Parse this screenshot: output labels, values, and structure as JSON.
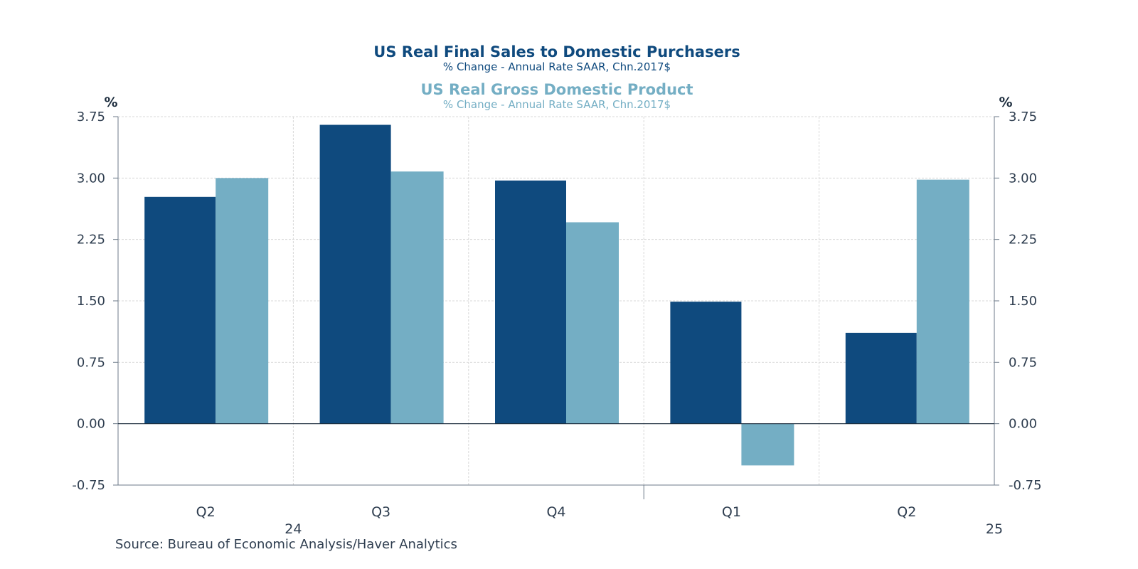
{
  "chart_data": {
    "type": "bar",
    "titles": [
      {
        "title": "US Real Final Sales to Domestic Purchasers",
        "subtitle": "% Change - Annual Rate    SAAR, Chn.2017$"
      },
      {
        "title": "US Real Gross Domestic Product",
        "subtitle": "% Change - Annual Rate    SAAR, Chn.2017$"
      }
    ],
    "categories": [
      "Q2",
      "Q3",
      "Q4",
      "Q1",
      "Q2"
    ],
    "year_labels": [
      {
        "label": "24",
        "after_index": 0
      },
      {
        "label": "25",
        "after_index": 4
      }
    ],
    "series": [
      {
        "name": "US Real Final Sales to Domestic Purchasers",
        "color": "#0f4a7e",
        "values": [
          2.77,
          3.65,
          2.97,
          1.49,
          1.11
        ]
      },
      {
        "name": "US Real Gross Domestic Product",
        "color": "#74aec4",
        "values": [
          3.0,
          3.08,
          2.46,
          -0.51,
          2.98
        ]
      }
    ],
    "ylim": [
      -0.75,
      3.75
    ],
    "yticks": [
      "3.75",
      "3.00",
      "2.25",
      "1.50",
      "0.75",
      "0.00",
      "-0.75"
    ],
    "ylabel_left": "%",
    "ylabel_right": "%",
    "source": "Source:  Bureau of Economic Analysis/Haver Analytics"
  }
}
